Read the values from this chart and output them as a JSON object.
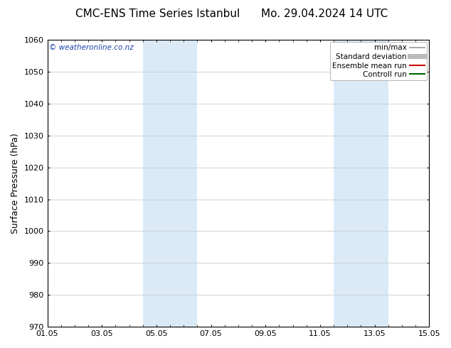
{
  "title_left": "CMC-ENS Time Series Istanbul",
  "title_right": "Mo. 29.04.2024 14 UTC",
  "ylabel": "Surface Pressure (hPa)",
  "ylim": [
    970,
    1060
  ],
  "yticks": [
    970,
    980,
    990,
    1000,
    1010,
    1020,
    1030,
    1040,
    1050,
    1060
  ],
  "xtick_labels": [
    "01.05",
    "03.05",
    "05.05",
    "07.05",
    "09.05",
    "11.05",
    "13.05",
    "15.05"
  ],
  "xlim_start": 0.0,
  "xlim_end": 14.0,
  "xtick_positions": [
    0,
    2,
    4,
    6,
    8,
    10,
    12,
    14
  ],
  "shaded_bands": [
    {
      "x_start": 3.5,
      "x_end": 5.5
    },
    {
      "x_start": 10.5,
      "x_end": 12.5
    }
  ],
  "shaded_color": "#daeaf7",
  "background_color": "#ffffff",
  "watermark_text": "© weatheronline.co.nz",
  "watermark_color": "#1a44aa",
  "legend_items": [
    {
      "label": "min/max",
      "color": "#999999",
      "lw": 1.2
    },
    {
      "label": "Standard deviation",
      "color": "#bbbbbb",
      "lw": 5
    },
    {
      "label": "Ensemble mean run",
      "color": "#cc0000",
      "lw": 1.5
    },
    {
      "label": "Controll run",
      "color": "#006600",
      "lw": 1.5
    }
  ],
  "title_fontsize": 11,
  "tick_label_fontsize": 8,
  "ylabel_fontsize": 9,
  "grid_color": "#cccccc",
  "legend_fontsize": 7.5
}
